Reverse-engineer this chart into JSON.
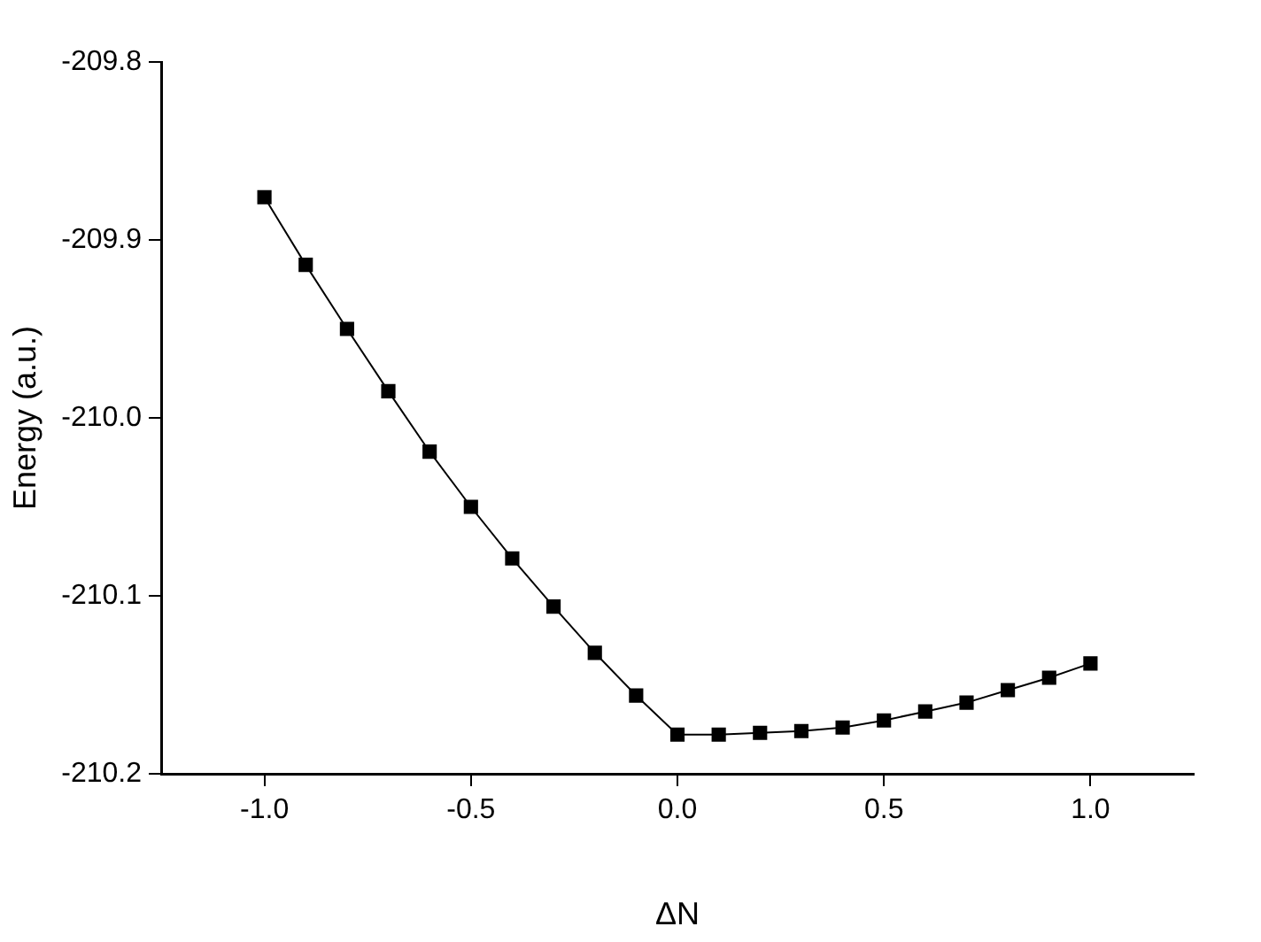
{
  "chart_data": {
    "type": "line",
    "xlabel": "ΔN",
    "ylabel": "Energy (a.u.)",
    "x": [
      -1.0,
      -0.9,
      -0.8,
      -0.7,
      -0.6,
      -0.5,
      -0.4,
      -0.3,
      -0.2,
      -0.1,
      0.0,
      0.1,
      0.2,
      0.3,
      0.4,
      0.5,
      0.6,
      0.7,
      0.8,
      0.9,
      1.0
    ],
    "series": [
      {
        "color": "#000000",
        "values": [
          -209.876,
          -209.914,
          -209.95,
          -209.985,
          -210.019,
          -210.05,
          -210.079,
          -210.106,
          -210.132,
          -210.156,
          -210.178,
          -210.178,
          -210.177,
          -210.176,
          -210.174,
          -210.17,
          -210.165,
          -210.16,
          -210.153,
          -210.146,
          -210.138
        ]
      }
    ],
    "xlim": [
      -1.25,
      1.25
    ],
    "xticks": [
      {
        "value": -1.0,
        "label": "-1.0"
      },
      {
        "value": -0.5,
        "label": "-0.5"
      },
      {
        "value": 0.0,
        "label": "0.0"
      },
      {
        "value": 0.5,
        "label": "0.5"
      },
      {
        "value": 1.0,
        "label": "1.0"
      }
    ],
    "ylim": [
      -210.2,
      -209.8
    ],
    "yticks": [
      {
        "value": -210.2,
        "label": "-210.2"
      },
      {
        "value": -210.1,
        "label": "-210.1"
      },
      {
        "value": -210.0,
        "label": "-210.0"
      },
      {
        "value": -209.9,
        "label": "-209.9"
      },
      -209.8
    ],
    "marker": "square",
    "line_style": "solid",
    "grid": false,
    "legend": false
  }
}
